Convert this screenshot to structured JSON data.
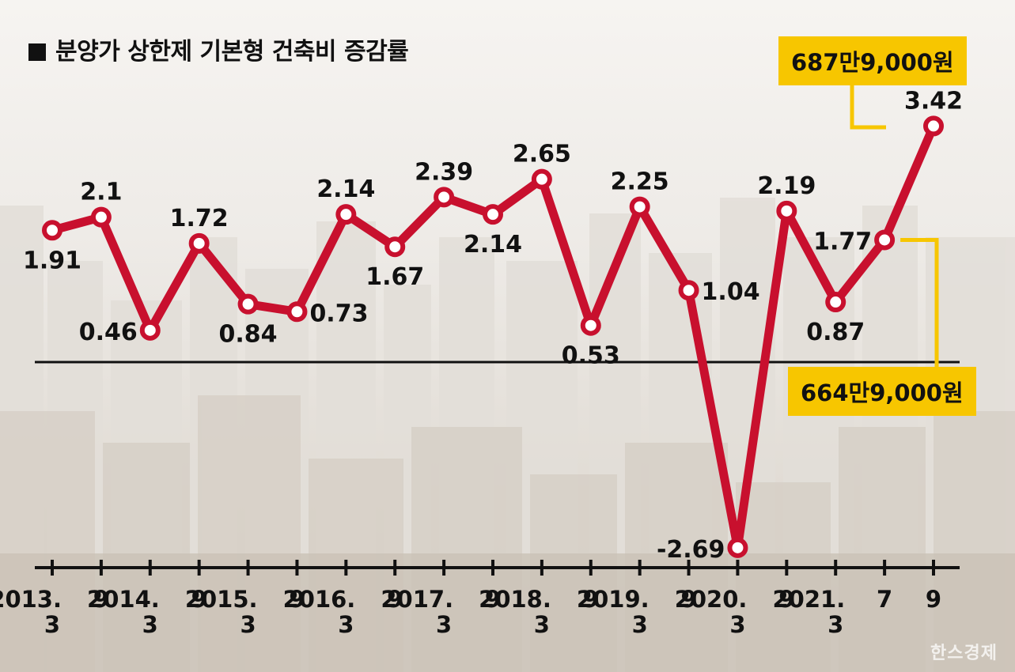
{
  "title": "분양가 상한제 기본형 건축비 증감률",
  "callouts": {
    "top": "687만9,000원",
    "bottom": "664만9,000원"
  },
  "watermark": "한스경제",
  "colors": {
    "line": "#c8102e",
    "callout": "#f7c600",
    "axis": "#111111"
  },
  "chart_data": {
    "type": "line",
    "title": "분양가 상한제 기본형 건축비 증감률",
    "xlabel": "",
    "ylabel": "",
    "ylim": [
      -3,
      4
    ],
    "baseline": 0,
    "grid": false,
    "categories": [
      "2013.3",
      "2013.9",
      "2014.3",
      "2014.9",
      "2015.3",
      "2015.9",
      "2016.3",
      "2016.9",
      "2017.3",
      "2017.9",
      "2018.3",
      "2018.9",
      "2019.3",
      "2019.9",
      "2020.3",
      "2020.9",
      "2021.3",
      "2021.7",
      "2021.9"
    ],
    "values": [
      1.91,
      2.1,
      0.46,
      1.72,
      0.84,
      0.73,
      2.14,
      1.67,
      2.39,
      2.14,
      2.65,
      0.53,
      2.25,
      1.04,
      -2.69,
      2.19,
      0.87,
      1.77,
      3.42
    ],
    "tick_labels": [
      {
        "top": "2013.",
        "bottom": "3"
      },
      {
        "top": "9",
        "bottom": ""
      },
      {
        "top": "2014.",
        "bottom": "3"
      },
      {
        "top": "9",
        "bottom": ""
      },
      {
        "top": "2015.",
        "bottom": "3"
      },
      {
        "top": "9",
        "bottom": ""
      },
      {
        "top": "2016.",
        "bottom": "3"
      },
      {
        "top": "9",
        "bottom": ""
      },
      {
        "top": "2017.",
        "bottom": "3"
      },
      {
        "top": "9",
        "bottom": ""
      },
      {
        "top": "2018.",
        "bottom": "3"
      },
      {
        "top": "9",
        "bottom": ""
      },
      {
        "top": "2019.",
        "bottom": "3"
      },
      {
        "top": "9",
        "bottom": ""
      },
      {
        "top": "2020.",
        "bottom": "3"
      },
      {
        "top": "9",
        "bottom": ""
      },
      {
        "top": "2021.",
        "bottom": "3"
      },
      {
        "top": "7",
        "bottom": ""
      },
      {
        "top": "9",
        "bottom": ""
      }
    ],
    "value_labels": [
      "1.91",
      "2.1",
      "0.46",
      "1.72",
      "0.84",
      "0.73",
      "2.14",
      "1.67",
      "2.39",
      "2.14",
      "2.65",
      "0.53",
      "2.25",
      "1.04",
      "-2.69",
      "2.19",
      "0.87",
      "1.77",
      "3.42"
    ],
    "label_position": [
      "below",
      "above",
      "left",
      "above",
      "below",
      "right",
      "above",
      "below",
      "above",
      "below",
      "above",
      "below",
      "above",
      "right",
      "left",
      "above",
      "below",
      "left",
      "above"
    ]
  }
}
